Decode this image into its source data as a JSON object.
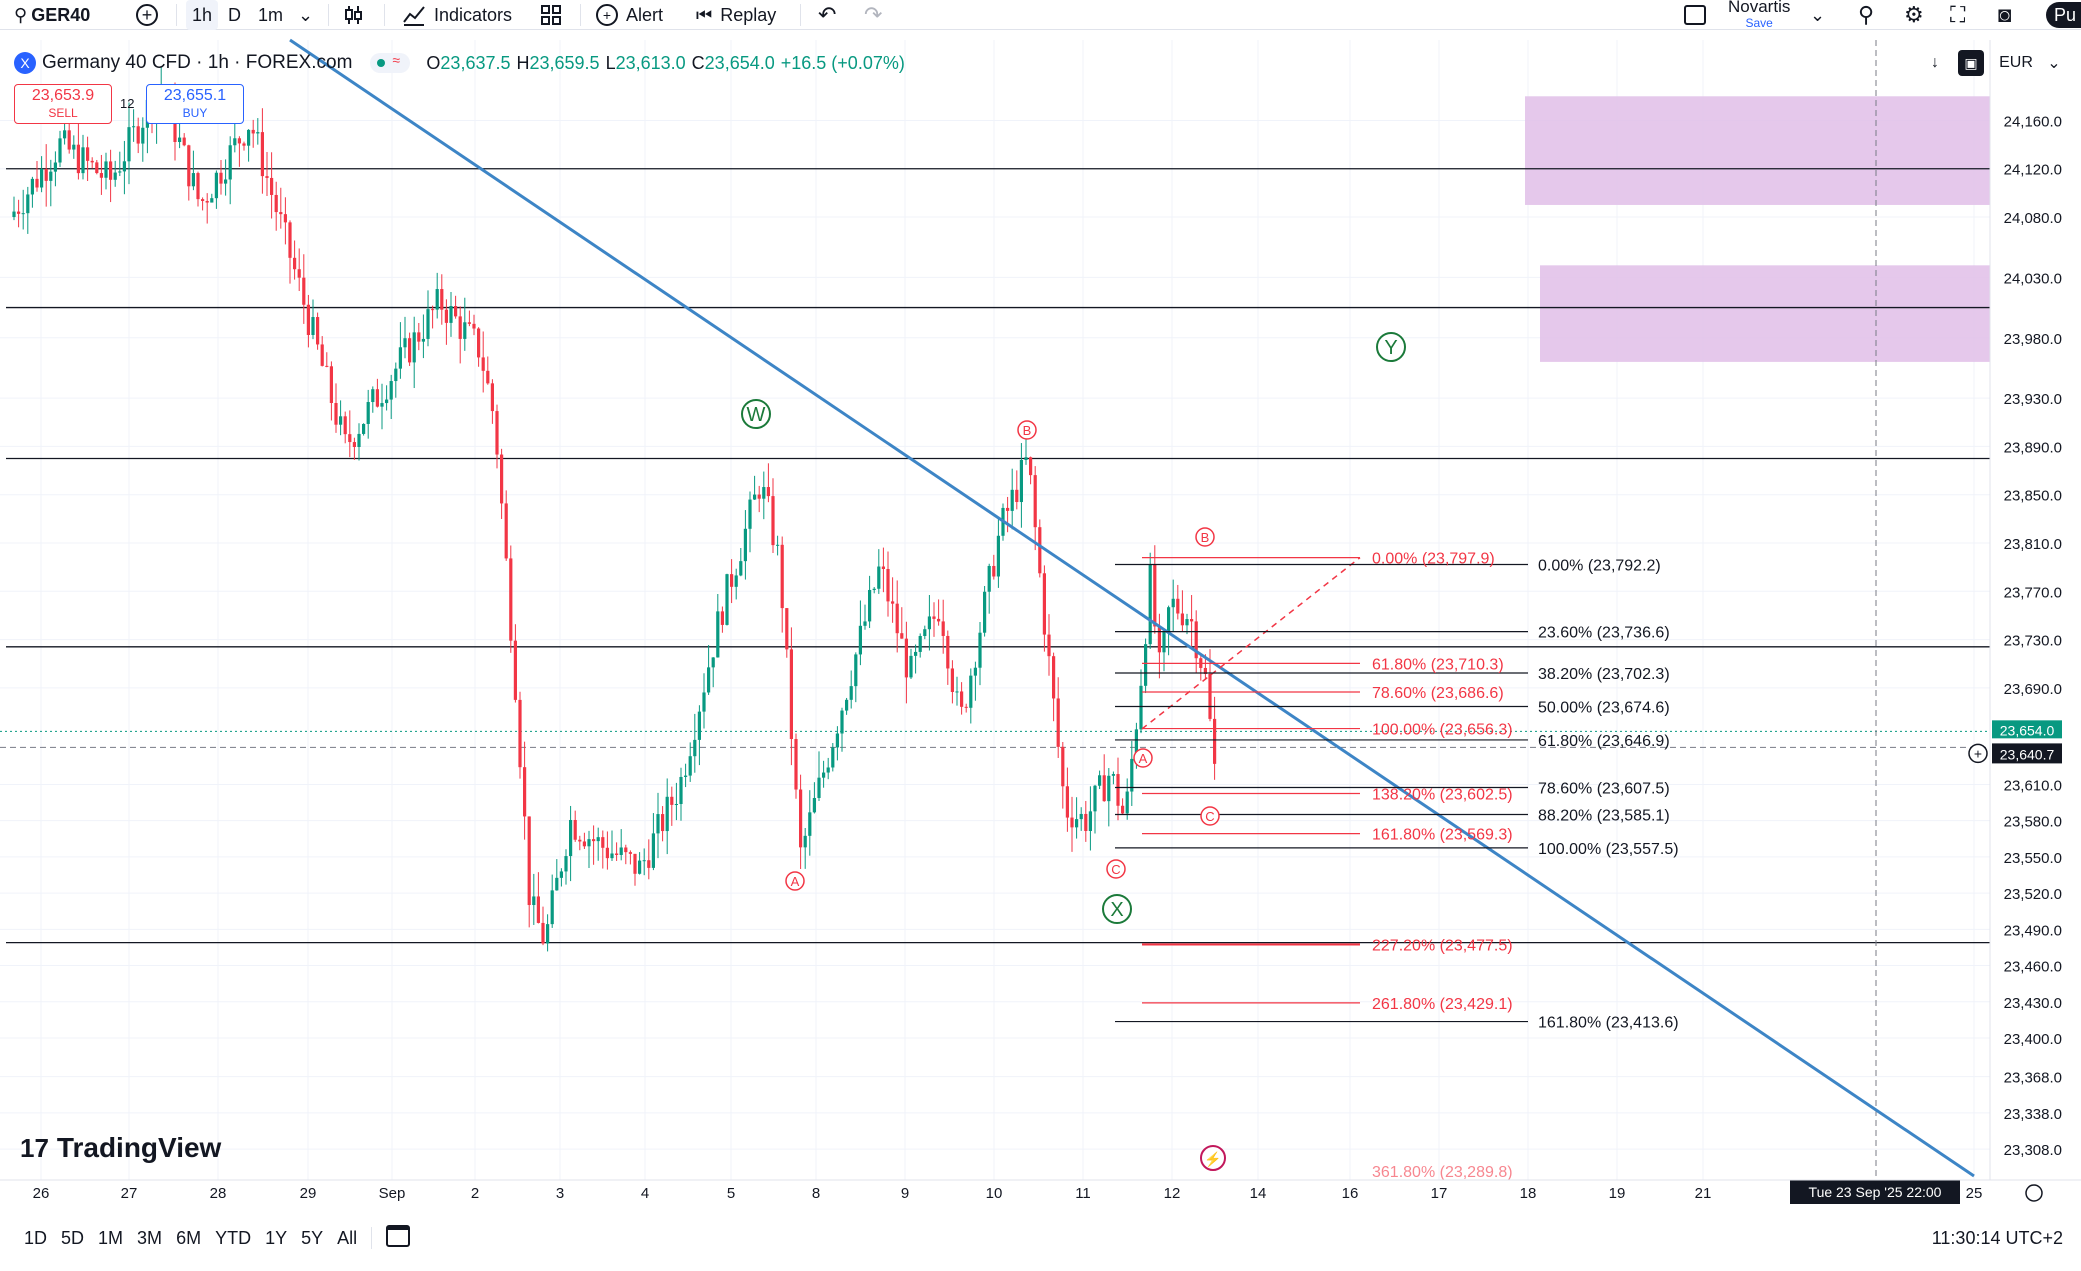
{
  "topbar": {
    "symbol": "GER40",
    "intervals": [
      "1h",
      "D",
      "1m"
    ],
    "indicators_label": "Indicators",
    "alert_label": "Alert",
    "replay_label": "Replay",
    "account_name": "Novartis",
    "save_label": "Save",
    "publish_label": "Pu"
  },
  "legend": {
    "title": "Germany 40 CFD · 1h · FOREX.com",
    "open_label": "O",
    "open": "23,637.5",
    "high_label": "H",
    "high": "23,659.5",
    "low_label": "L",
    "low": "23,613.0",
    "close_label": "C",
    "close": "23,654.0",
    "change": "+16.5 (+0.07%)"
  },
  "trade": {
    "sell_price": "23,653.9",
    "sell_label": "SELL",
    "spread": "12",
    "buy_price": "23,655.1",
    "buy_label": "BUY"
  },
  "right_controls": {
    "currency": "EUR"
  },
  "price_axis": {
    "ticks": [
      "24,160.0",
      "24,120.0",
      "24,080.0",
      "24,030.0",
      "23,980.0",
      "23,930.0",
      "23,890.0",
      "23,850.0",
      "23,810.0",
      "23,770.0",
      "23,730.0",
      "23,690.0",
      "23,610.0",
      "23,580.0",
      "23,550.0",
      "23,520.0",
      "23,490.0",
      "23,460.0",
      "23,430.0",
      "23,400.0",
      "23,368.0",
      "23,338.0",
      "23,308.0"
    ],
    "current_price": "23,654.0",
    "crosshair_price": "23,640.7"
  },
  "time_axis": {
    "labels": [
      "26",
      "27",
      "28",
      "29",
      "Sep",
      "2",
      "3",
      "4",
      "5",
      "8",
      "9",
      "10",
      "11",
      "12",
      "14",
      "16",
      "17",
      "18",
      "19",
      "21",
      "25"
    ],
    "crosshair_label": "Tue 23 Sep '25   22:00"
  },
  "waves": {
    "W": "W",
    "X": "X",
    "Y": "Y",
    "minor": [
      "A",
      "B",
      "C",
      "B",
      "A",
      "C",
      "B",
      "C"
    ]
  },
  "fib_right": [
    "0.00% (23,792.2)",
    "23.60% (23,736.6)",
    "38.20% (23,702.3)",
    "50.00% (23,674.6)",
    "61.80% (23,646.9)",
    "78.60% (23,607.5)",
    "88.20% (23,585.1)",
    "100.00% (23,557.5)",
    "161.80% (23,413.6)"
  ],
  "fib_ext": [
    "0.00% (23,797.9)",
    "61.80% (23,710.3)",
    "78.60% (23,686.6)",
    "100.00% (23,656.3)",
    "138.20% (23,602.5)",
    "161.80% (23,569.3)",
    "227.20% (23,477.5)",
    "261.80% (23,429.1)",
    "361.80% (23,289.8)"
  ],
  "watermark": "TradingView",
  "ranges": [
    "1D",
    "5D",
    "1M",
    "3M",
    "6M",
    "YTD",
    "1Y",
    "5Y",
    "All"
  ],
  "clock": "11:30:14 UTC+2",
  "colors": {
    "up": "#089981",
    "down": "#f23645",
    "trend": "#3d85c6",
    "zone": "#e1bee7",
    "fib": "#f23645"
  }
}
